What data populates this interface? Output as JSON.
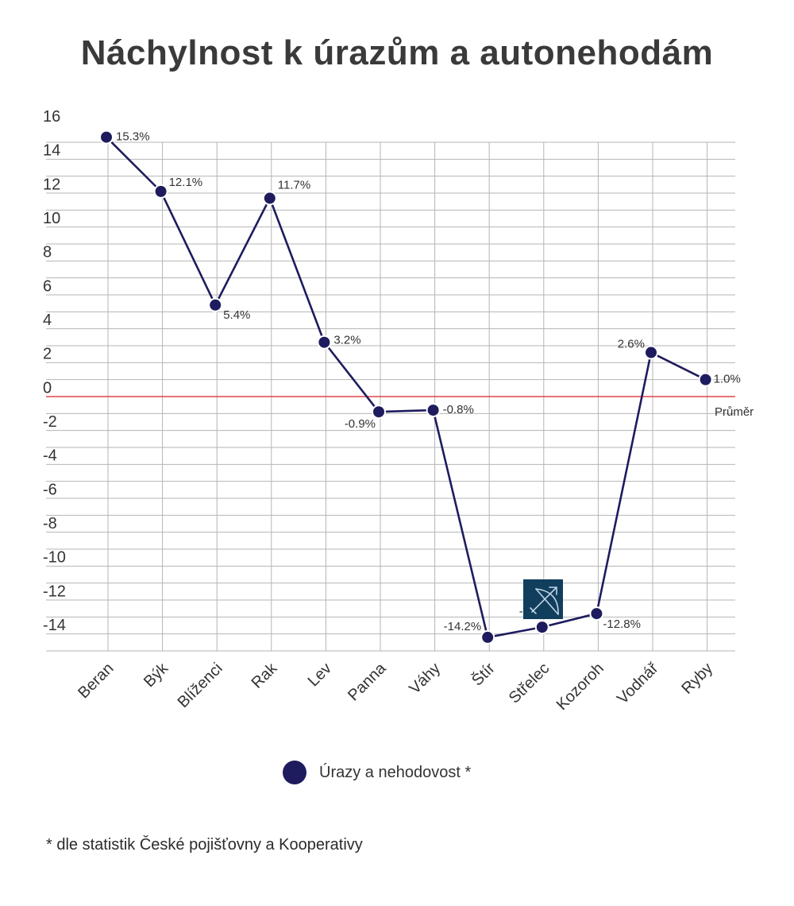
{
  "title": "Náchylnost k úrazům a autonehodám",
  "footnote": "* dle statistik České pojišťovny a Kooperativy",
  "legend": {
    "label": "Úrazy a nehodovost *"
  },
  "reference_line": {
    "label": "Průměr",
    "value": 0,
    "color": "#e0454b"
  },
  "icon": "sagittarius-icon",
  "colors": {
    "series": "#1e1c5e",
    "grid": "#b5b5b5",
    "avg": "#e0454b"
  },
  "chart_data": {
    "type": "line",
    "categories": [
      "Beran",
      "Býk",
      "Blíženci",
      "Rak",
      "Lev",
      "Panna",
      "Váhy",
      "Štír",
      "Střelec",
      "Kozoroh",
      "Vodnář",
      "Ryby"
    ],
    "series": [
      {
        "name": "Úrazy a nehodovost *",
        "values": [
          15.3,
          12.1,
          5.4,
          11.7,
          3.2,
          -0.9,
          -0.8,
          -14.2,
          -13.6,
          -12.8,
          2.6,
          1.0
        ]
      }
    ],
    "data_labels": [
      "15.3%",
      "12.1%",
      "5.4%",
      "11.7%",
      "3.2%",
      "-0.9%",
      "-0.8%",
      "-14.2%",
      "-13.6%",
      "-12.8%",
      "2.6%",
      "1.0%"
    ],
    "yticks": [
      "16",
      "14",
      "12",
      "10",
      "8",
      "6",
      "4",
      "2",
      "0",
      "-2",
      "-4",
      "-6",
      "-8",
      "-10",
      "-12",
      "-14"
    ],
    "ylim": [
      -14,
      16
    ],
    "grid": true,
    "legend_position": "bottom-center"
  }
}
